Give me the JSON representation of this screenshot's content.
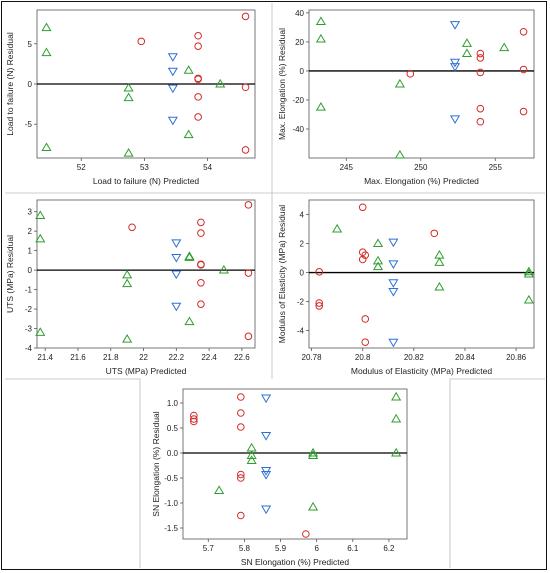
{
  "chart_data": [
    {
      "type": "scatter",
      "xlabel": "Load to failure (N) Predicted",
      "ylabel": "Load to failure (N) Residual",
      "xlim": [
        51.3,
        54.75
      ],
      "ylim": [
        -9.2,
        9.2
      ],
      "xticks": [
        52,
        53,
        54
      ],
      "yticks": [
        -5,
        0,
        5
      ],
      "series": [
        {
          "marker": "triangle-up",
          "color": "#2e9e2e",
          "points": [
            [
              51.45,
              7.0
            ],
            [
              51.45,
              3.9
            ],
            [
              51.45,
              -7.9
            ],
            [
              52.75,
              -0.5
            ],
            [
              52.75,
              -1.7
            ],
            [
              52.75,
              -8.6
            ],
            [
              53.7,
              1.7
            ],
            [
              53.7,
              -6.3
            ],
            [
              54.2,
              0.0
            ]
          ]
        },
        {
          "marker": "circle",
          "color": "#d42a2a",
          "points": [
            [
              52.95,
              5.3
            ],
            [
              53.85,
              6.0
            ],
            [
              53.85,
              4.7
            ],
            [
              53.85,
              0.7
            ],
            [
              53.85,
              0.6
            ],
            [
              53.85,
              -1.6
            ],
            [
              53.85,
              -4.1
            ],
            [
              54.6,
              8.4
            ],
            [
              54.6,
              -0.4
            ],
            [
              54.6,
              -8.2
            ]
          ]
        },
        {
          "marker": "triangle-down",
          "color": "#2f6fd8",
          "points": [
            [
              53.45,
              3.4
            ],
            [
              53.45,
              1.6
            ],
            [
              53.45,
              -0.5
            ],
            [
              53.45,
              -4.5
            ]
          ]
        }
      ]
    },
    {
      "type": "scatter",
      "xlabel": "Max. Elongation (%) Predicted",
      "ylabel": "Max. Elongation (%) Residual",
      "xlim": [
        242.5,
        257.6
      ],
      "ylim": [
        -60,
        42
      ],
      "xticks": [
        245,
        250,
        255
      ],
      "yticks": [
        -40,
        -20,
        0,
        20,
        40
      ],
      "series": [
        {
          "marker": "triangle-up",
          "color": "#2e9e2e",
          "points": [
            [
              243.3,
              34
            ],
            [
              243.3,
              22
            ],
            [
              243.3,
              -25
            ],
            [
              248.6,
              -9
            ],
            [
              248.6,
              -58
            ],
            [
              253.1,
              19
            ],
            [
              253.1,
              12
            ],
            [
              255.6,
              16
            ]
          ]
        },
        {
          "marker": "circle",
          "color": "#d42a2a",
          "points": [
            [
              249.3,
              -2
            ],
            [
              254.0,
              12
            ],
            [
              254.0,
              9
            ],
            [
              254.0,
              -1
            ],
            [
              254.0,
              -26
            ],
            [
              254.0,
              -35
            ],
            [
              256.9,
              27
            ],
            [
              256.9,
              1
            ],
            [
              256.9,
              -28
            ]
          ]
        },
        {
          "marker": "triangle-down",
          "color": "#2f6fd8",
          "points": [
            [
              252.3,
              32
            ],
            [
              252.3,
              6
            ],
            [
              252.3,
              3
            ],
            [
              252.3,
              -33
            ]
          ]
        }
      ]
    },
    {
      "type": "scatter",
      "xlabel": "UTS (MPa) Predicted",
      "ylabel": "UTS (MPa) Residual",
      "xlim": [
        21.35,
        22.68
      ],
      "ylim": [
        -4.0,
        3.6
      ],
      "xticks": [
        21.4,
        21.6,
        21.8,
        22.0,
        22.2,
        22.4,
        22.6
      ],
      "xtick_labels": [
        "21.4",
        "21.6",
        "21.8",
        "22",
        "22.2",
        "22.4",
        "22.6"
      ],
      "yticks": [
        -4,
        -3,
        -2,
        -1,
        0,
        1,
        2,
        3
      ],
      "series": [
        {
          "marker": "triangle-up",
          "color": "#2e9e2e",
          "points": [
            [
              21.37,
              2.8
            ],
            [
              21.37,
              1.6
            ],
            [
              21.37,
              -3.2
            ],
            [
              21.9,
              -0.25
            ],
            [
              21.9,
              -0.7
            ],
            [
              21.9,
              -3.55
            ],
            [
              22.28,
              0.7
            ],
            [
              22.28,
              0.65
            ],
            [
              22.28,
              -2.65
            ],
            [
              22.49,
              0.0
            ]
          ]
        },
        {
          "marker": "circle",
          "color": "#d42a2a",
          "points": [
            [
              21.93,
              2.2
            ],
            [
              22.35,
              2.45
            ],
            [
              22.35,
              1.9
            ],
            [
              22.35,
              0.3
            ],
            [
              22.35,
              0.27
            ],
            [
              22.35,
              -0.65
            ],
            [
              22.35,
              -1.75
            ],
            [
              22.64,
              3.35
            ],
            [
              22.64,
              -0.15
            ],
            [
              22.64,
              -3.4
            ]
          ]
        },
        {
          "marker": "triangle-down",
          "color": "#2f6fd8",
          "points": [
            [
              22.2,
              1.4
            ],
            [
              22.2,
              0.65
            ],
            [
              22.2,
              -0.2
            ],
            [
              22.2,
              -1.85
            ]
          ]
        }
      ]
    },
    {
      "type": "scatter",
      "xlabel": "Modulus of Elasticity (MPa) Predicted",
      "ylabel": "Modulus of Elasticity (MPa) Residual",
      "xlim": [
        20.779,
        20.867
      ],
      "ylim": [
        -5.2,
        5.0
      ],
      "xticks": [
        20.78,
        20.8,
        20.82,
        20.84,
        20.86
      ],
      "yticks": [
        -4,
        -2,
        0,
        2,
        4
      ],
      "series": [
        {
          "marker": "triangle-up",
          "color": "#2e9e2e",
          "points": [
            [
              20.79,
              3.0
            ],
            [
              20.806,
              2.0
            ],
            [
              20.806,
              0.8
            ],
            [
              20.806,
              0.4
            ],
            [
              20.83,
              1.2
            ],
            [
              20.83,
              0.7
            ],
            [
              20.83,
              -1.0
            ],
            [
              20.865,
              0.05
            ],
            [
              20.865,
              -0.1
            ],
            [
              20.865,
              -1.9
            ]
          ]
        },
        {
          "marker": "circle",
          "color": "#d42a2a",
          "points": [
            [
              20.783,
              0.05
            ],
            [
              20.783,
              -2.1
            ],
            [
              20.783,
              -2.3
            ],
            [
              20.8,
              4.5
            ],
            [
              20.8,
              1.4
            ],
            [
              20.8,
              0.9
            ],
            [
              20.801,
              1.2
            ],
            [
              20.801,
              -3.2
            ],
            [
              20.801,
              -4.8
            ],
            [
              20.828,
              2.7
            ]
          ]
        },
        {
          "marker": "triangle-down",
          "color": "#2f6fd8",
          "points": [
            [
              20.812,
              2.1
            ],
            [
              20.812,
              0.6
            ],
            [
              20.812,
              -0.7
            ],
            [
              20.812,
              -1.3
            ],
            [
              20.812,
              -4.8
            ]
          ]
        }
      ]
    },
    {
      "type": "scatter",
      "xlabel": "SN Elongation (%) Predicted",
      "ylabel": "SN Elongation (%) Residual",
      "xlim": [
        5.63,
        6.25
      ],
      "ylim": [
        -1.72,
        1.28
      ],
      "xticks": [
        5.7,
        5.8,
        5.9,
        6.0,
        6.1,
        6.2
      ],
      "xtick_labels": [
        "5.7",
        "5.8",
        "5.9",
        "6",
        "6.1",
        "6.2"
      ],
      "yticks": [
        -1.5,
        -1.0,
        -0.5,
        0.0,
        0.5,
        1.0
      ],
      "ytick_labels": [
        "-1.5",
        "-1.0",
        "-0.5",
        "0.0",
        "0.5",
        "1.0"
      ],
      "series": [
        {
          "marker": "triangle-up",
          "color": "#2e9e2e",
          "points": [
            [
              5.73,
              -0.75
            ],
            [
              5.82,
              0.1
            ],
            [
              5.82,
              -0.05
            ],
            [
              5.82,
              -0.15
            ],
            [
              5.99,
              0.0
            ],
            [
              5.99,
              -0.05
            ],
            [
              5.99,
              -1.08
            ],
            [
              6.22,
              1.12
            ],
            [
              6.22,
              0.68
            ],
            [
              6.22,
              0.0
            ]
          ]
        },
        {
          "marker": "circle",
          "color": "#d42a2a",
          "points": [
            [
              5.66,
              0.75
            ],
            [
              5.66,
              0.68
            ],
            [
              5.66,
              0.63
            ],
            [
              5.79,
              1.12
            ],
            [
              5.79,
              0.8
            ],
            [
              5.79,
              0.52
            ],
            [
              5.79,
              -0.43
            ],
            [
              5.79,
              -0.5
            ],
            [
              5.79,
              -1.25
            ],
            [
              5.97,
              -1.62
            ]
          ]
        },
        {
          "marker": "triangle-down",
          "color": "#2f6fd8",
          "points": [
            [
              5.86,
              1.1
            ],
            [
              5.86,
              0.35
            ],
            [
              5.86,
              -0.35
            ],
            [
              5.86,
              -0.43
            ],
            [
              5.86,
              -1.12
            ]
          ]
        }
      ]
    }
  ]
}
